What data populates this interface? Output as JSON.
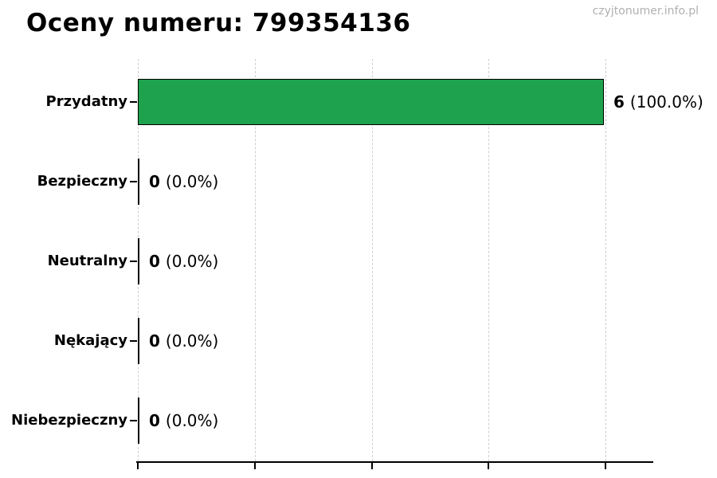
{
  "page": {
    "background": "#ffffff",
    "watermark": "czyjtonumer.info.pl",
    "watermark_color": "#b0b0b0"
  },
  "chart_data": {
    "type": "bar",
    "orientation": "horizontal",
    "title": "Oceny numeru: 799354136",
    "categories": [
      "Przydatny",
      "Bezpieczny",
      "Neutralny",
      "Nękający",
      "Niebezpieczny"
    ],
    "values": [
      6,
      0,
      0,
      0,
      0
    ],
    "percentages": [
      100.0,
      0.0,
      0.0,
      0.0,
      0.0
    ],
    "value_labels": [
      "6",
      "0",
      "0",
      "0",
      "0"
    ],
    "pct_labels": [
      "(100.0%)",
      "(0.0%)",
      "(0.0%)",
      "(0.0%)",
      "(0.0%)"
    ],
    "xlim": [
      0,
      6
    ],
    "x_ticks": [
      0,
      1.5,
      3,
      4.5,
      6
    ],
    "x_tick_labels_visible": false,
    "grid": true,
    "grid_style": "dashed",
    "bar_color": "#1ea24d",
    "bar_edge_color": "#000000",
    "legend": "none"
  }
}
